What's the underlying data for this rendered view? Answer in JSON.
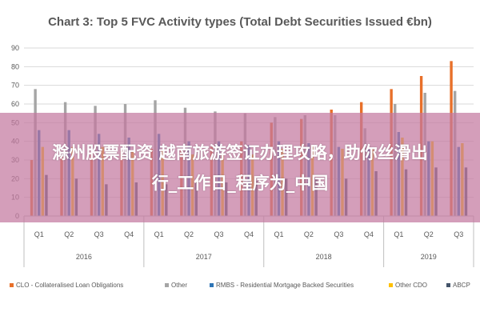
{
  "chart_data": {
    "type": "bar",
    "title": "Chart 3: Top 5 FVC Activity types (Total Debt Securities Issued €bn)",
    "ylim": [
      0,
      90
    ],
    "yticks": [
      0,
      10,
      20,
      30,
      40,
      50,
      60,
      70,
      80,
      90
    ],
    "grid": true,
    "legend_position": "bottom",
    "categories": [
      "Q1",
      "Q2",
      "Q3",
      "Q4",
      "Q1",
      "Q2",
      "Q3",
      "Q4",
      "Q1",
      "Q2",
      "Q3",
      "Q4",
      "Q1",
      "Q2",
      "Q3"
    ],
    "groups": [
      {
        "label": "2016",
        "count": 4
      },
      {
        "label": "2017",
        "count": 4
      },
      {
        "label": "2018",
        "count": 4
      },
      {
        "label": "2019",
        "count": 3
      }
    ],
    "series": [
      {
        "name": "CLO - Collateralised Loan Obligations",
        "color": "#e8702a",
        "values": [
          30,
          32,
          34,
          35,
          36,
          36,
          37,
          40,
          50,
          52,
          57,
          61,
          68,
          75,
          83
        ]
      },
      {
        "name": "Other",
        "color": "#a5a5a5",
        "values": [
          68,
          61,
          59,
          60,
          62,
          58,
          56,
          55,
          53,
          54,
          54,
          47,
          60,
          66,
          67
        ]
      },
      {
        "name": "RMBS - Residential Mortgage Backed Securities",
        "color": "#2e75b6",
        "values": [
          46,
          46,
          44,
          42,
          44,
          40,
          40,
          38,
          40,
          39,
          37,
          36,
          45,
          40,
          37
        ]
      },
      {
        "name": "Other CDO",
        "color": "#ffc000",
        "values": [
          37,
          37,
          37,
          35,
          35,
          33,
          33,
          33,
          36,
          38,
          36,
          36,
          42,
          40,
          39
        ]
      },
      {
        "name": "ABCP",
        "color": "#44546a",
        "values": [
          22,
          20,
          17,
          18,
          17,
          18,
          18,
          19,
          20,
          20,
          20,
          24,
          25,
          26,
          26
        ]
      }
    ]
  },
  "overlay": {
    "line1": "滁州股票配资 越南旅游签证办理攻略，助你丝滑出",
    "line2": "行_工作日_程序为_中国"
  }
}
